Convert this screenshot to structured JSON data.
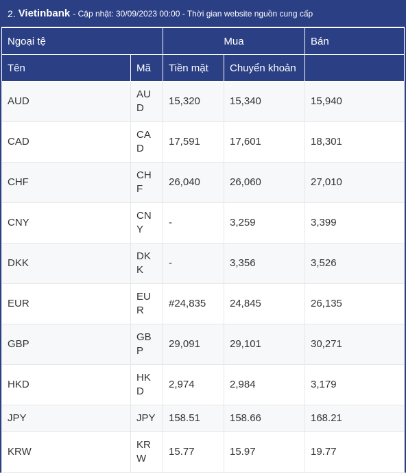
{
  "header": {
    "index": "2.",
    "bank": "Vietinbank",
    "note": "- Cập nhật: 30/09/2023 00:00 - Thời gian website nguồn cung cấp"
  },
  "table": {
    "group_headers": {
      "currency": "Ngoại tệ",
      "buy": "Mua",
      "sell": "Bán"
    },
    "columns": {
      "name": "Tên",
      "code": "Mã",
      "cash": "Tiền mặt",
      "transfer": "Chuyển khoản"
    },
    "rows": [
      {
        "name": "AUD",
        "code": "AUD",
        "cash": "15,320",
        "transfer": "15,340",
        "sell": "15,940"
      },
      {
        "name": "CAD",
        "code": "CAD",
        "cash": "17,591",
        "transfer": "17,601",
        "sell": "18,301"
      },
      {
        "name": "CHF",
        "code": "CHF",
        "cash": "26,040",
        "transfer": "26,060",
        "sell": "27,010"
      },
      {
        "name": "CNY",
        "code": "CNY",
        "cash": "-",
        "transfer": "3,259",
        "sell": "3,399"
      },
      {
        "name": "DKK",
        "code": "DKK",
        "cash": "-",
        "transfer": "3,356",
        "sell": "3,526"
      },
      {
        "name": "EUR",
        "code": "EUR",
        "cash": "#24,835",
        "transfer": "24,845",
        "sell": "26,135"
      },
      {
        "name": "GBP",
        "code": "GBP",
        "cash": "29,091",
        "transfer": "29,101",
        "sell": "30,271"
      },
      {
        "name": "HKD",
        "code": "HKD",
        "cash": "2,974",
        "transfer": "2,984",
        "sell": "3,179"
      },
      {
        "name": "JPY",
        "code": "JPY",
        "cash": "158.51",
        "transfer": "158.66",
        "sell": "168.21"
      },
      {
        "name": "KRW",
        "code": "KRW",
        "cash": "15.77",
        "transfer": "15.97",
        "sell": "19.77"
      }
    ]
  },
  "colors": {
    "header_bg": "#2b3f85",
    "stripe": "#f7f8fa",
    "border": "#e6e6e6"
  }
}
